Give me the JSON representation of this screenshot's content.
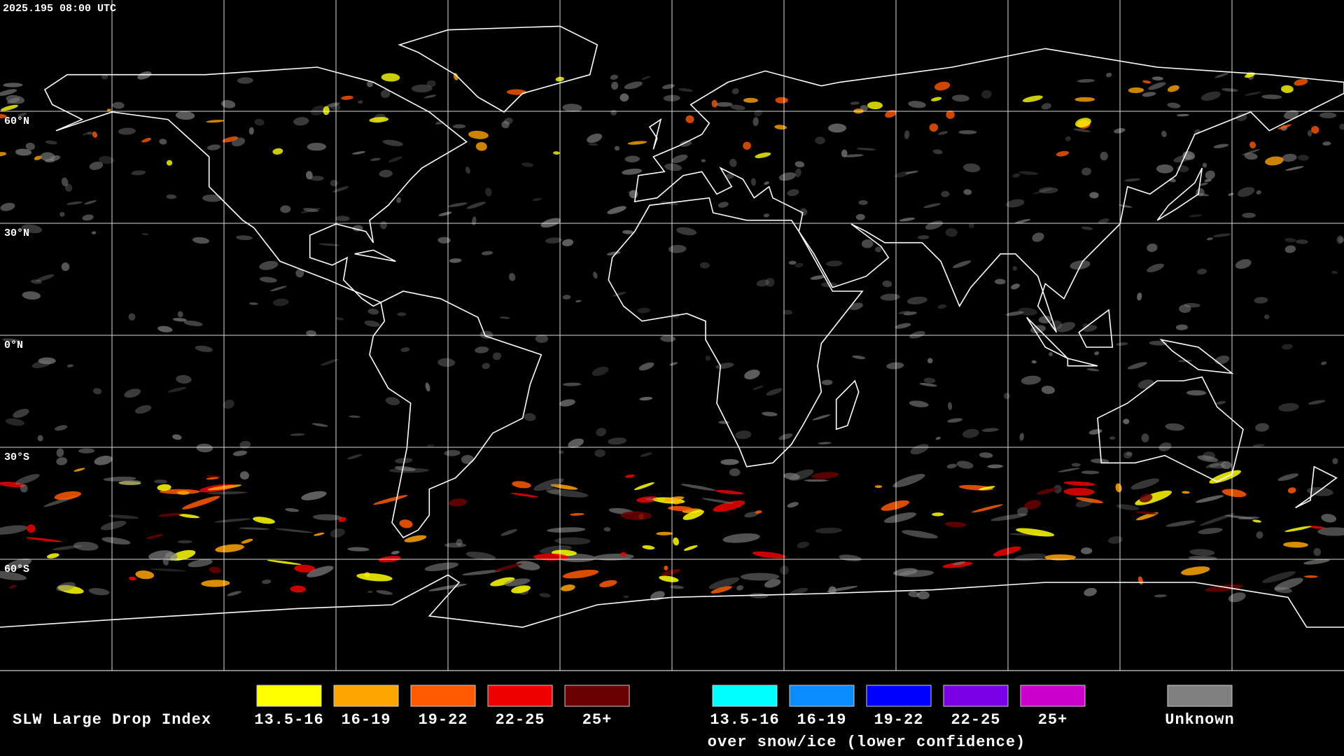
{
  "header": {
    "timestamp": "2025.195 08:00 UTC"
  },
  "map": {
    "lat_labels": [
      "60°N",
      "30°N",
      "0°N",
      "30°S",
      "60°S"
    ]
  },
  "legend": {
    "title": "SLW Large Drop Index",
    "items": [
      {
        "label": "13.5-16",
        "color": "#ffff00"
      },
      {
        "label": "16-19",
        "color": "#ffa500"
      },
      {
        "label": "19-22",
        "color": "#ff5a00"
      },
      {
        "label": "22-25",
        "color": "#ee0000"
      },
      {
        "label": "25+",
        "color": "#6a0000"
      }
    ],
    "snow_items": [
      {
        "label": "13.5-16",
        "color": "#00ffff"
      },
      {
        "label": "16-19",
        "color": "#0a8cff"
      },
      {
        "label": "19-22",
        "color": "#0000ff"
      },
      {
        "label": "22-25",
        "color": "#7a00e6"
      },
      {
        "label": "25+",
        "color": "#cc00cc"
      }
    ],
    "snow_caption": "over snow/ice (lower confidence)",
    "unknown": {
      "label": "Unknown",
      "color": "#808080"
    }
  }
}
